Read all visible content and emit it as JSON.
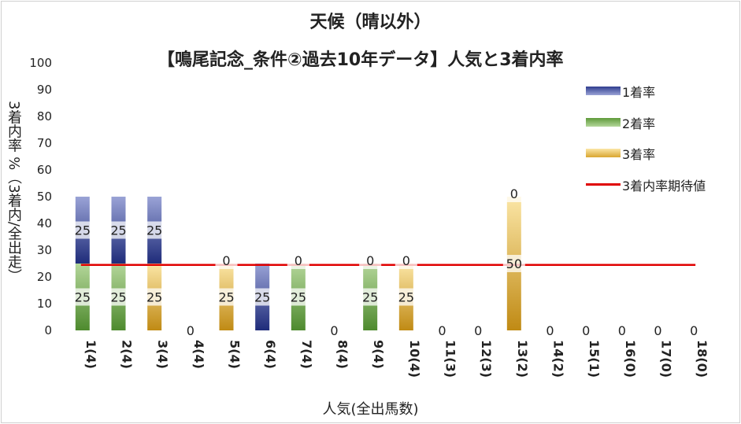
{
  "chart_data": {
    "type": "bar",
    "title": "天候（晴以外）",
    "subtitle": "【鳴尾記念_条件②過去10年データ】人気と3着内率",
    "xlabel": "人気(全出馬数)",
    "ylabel": "3着内率 %（3着内/全出走）",
    "ylim": [
      0,
      100
    ],
    "yticks": [
      0,
      10,
      20,
      30,
      40,
      50,
      60,
      70,
      80,
      90,
      100
    ],
    "categories": [
      "1(4)",
      "2(4)",
      "3(4)",
      "4(4)",
      "5(4)",
      "6(4)",
      "7(4)",
      "8(4)",
      "9(4)",
      "10(4)",
      "11(3)",
      "12(3)",
      "13(2)",
      "14(2)",
      "15(1)",
      "16(0)",
      "17(0)",
      "18(0)"
    ],
    "series": [
      {
        "name": "1着率",
        "color": "#2f3d8f",
        "values": [
          25,
          25,
          25,
          0,
          0,
          25,
          0,
          0,
          0,
          0,
          0,
          0,
          0,
          0,
          0,
          0,
          0,
          0
        ]
      },
      {
        "name": "2着率",
        "color": "#5e9a3a",
        "values": [
          25,
          25,
          0,
          0,
          0,
          0,
          25,
          0,
          25,
          0,
          0,
          0,
          0,
          0,
          0,
          0,
          0,
          0
        ]
      },
      {
        "name": "3着率",
        "color": "#c8961a",
        "values": [
          0,
          0,
          25,
          0,
          25,
          0,
          0,
          0,
          0,
          25,
          0,
          0,
          50,
          0,
          0,
          0,
          0,
          0
        ]
      }
    ],
    "expected": {
      "name": "3着内率期待値",
      "value": 24.5,
      "color": "#e00000"
    },
    "legend": "top-right",
    "grid": false
  }
}
